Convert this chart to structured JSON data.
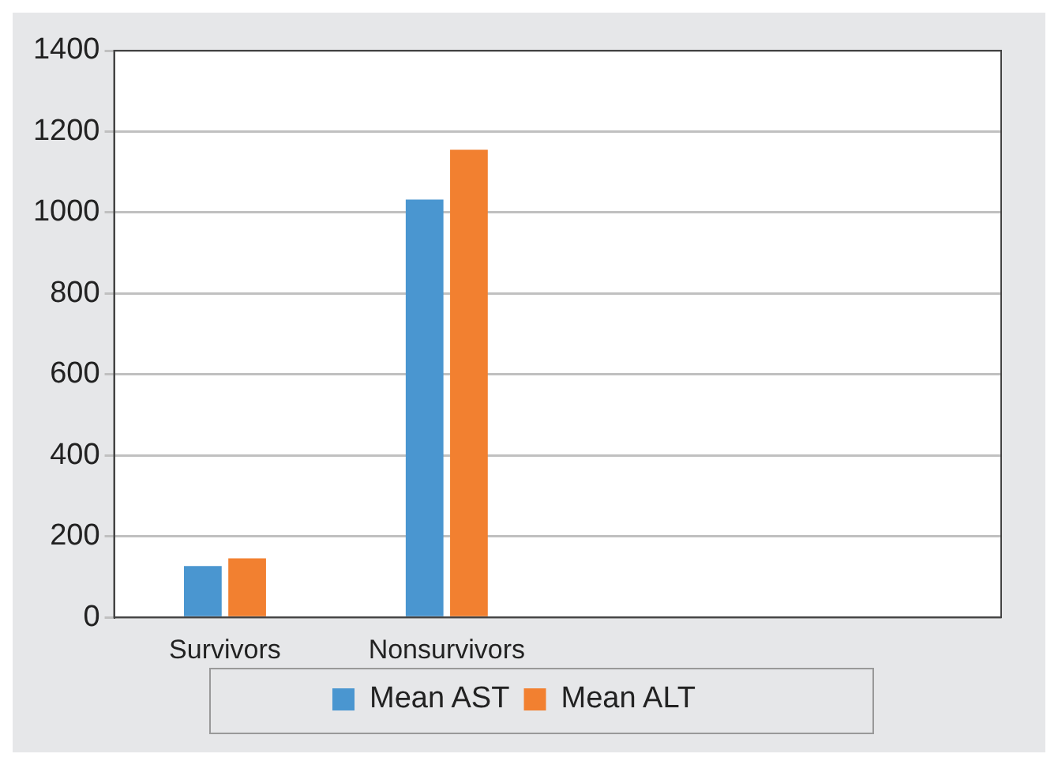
{
  "chart_data": {
    "type": "bar",
    "categories": [
      "Survivors",
      "Nonsurvivors",
      null,
      null
    ],
    "series": [
      {
        "name": "Mean AST",
        "color": "#4a96d0",
        "values": [
          127,
          1032,
          null,
          null
        ]
      },
      {
        "name": "Mean ALT",
        "color": "#f28030",
        "values": [
          146,
          1155,
          null,
          null
        ]
      }
    ],
    "ylim": [
      0,
      1400
    ],
    "yticks": [
      0,
      200,
      400,
      600,
      800,
      1000,
      1200,
      1400
    ],
    "grid": "y",
    "legend": "bottom"
  }
}
